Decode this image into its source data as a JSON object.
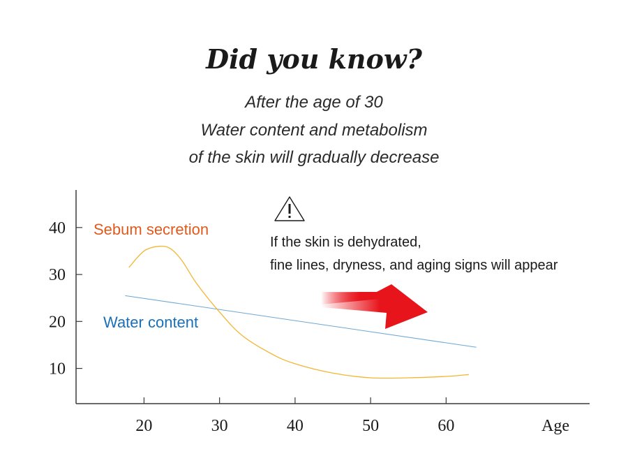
{
  "heading": {
    "title": "Did you know?",
    "subtitle_lines": [
      "After the age of 30",
      "Water content and metabolism",
      "of the skin will gradually decrease"
    ]
  },
  "warning": {
    "icon": "warning-triangle-icon",
    "lines": [
      "If the skin is dehydrated,",
      "fine lines, dryness, and aging signs will appear"
    ]
  },
  "arrow": {
    "icon": "trend-arrow-icon",
    "color": "#e8141c"
  },
  "chart_data": {
    "type": "line",
    "title": "",
    "xlabel": "Age",
    "ylabel": "",
    "x_ticks": [
      "20",
      "30",
      "40",
      "50",
      "60"
    ],
    "y_ticks": [
      "10",
      "20",
      "30",
      "40"
    ],
    "xlim": [
      11,
      79
    ],
    "ylim": [
      2.5,
      48
    ],
    "grid": false,
    "series": [
      {
        "name": "Sebum secretion",
        "color": "#f2b632",
        "label_color": "#e05a1e",
        "x": [
          18,
          20,
          22,
          23.5,
          25,
          27,
          30,
          33,
          37,
          40,
          45,
          50,
          55,
          60,
          63
        ],
        "y": [
          31.5,
          35,
          36,
          35.5,
          33,
          28,
          22,
          17,
          13,
          11,
          9,
          8,
          8,
          8.3,
          8.7
        ]
      },
      {
        "name": "Water content",
        "color": "#6aa7d6",
        "label_color": "#1a70b8",
        "x": [
          17.5,
          64
        ],
        "y": [
          25.5,
          14.5
        ]
      }
    ]
  }
}
